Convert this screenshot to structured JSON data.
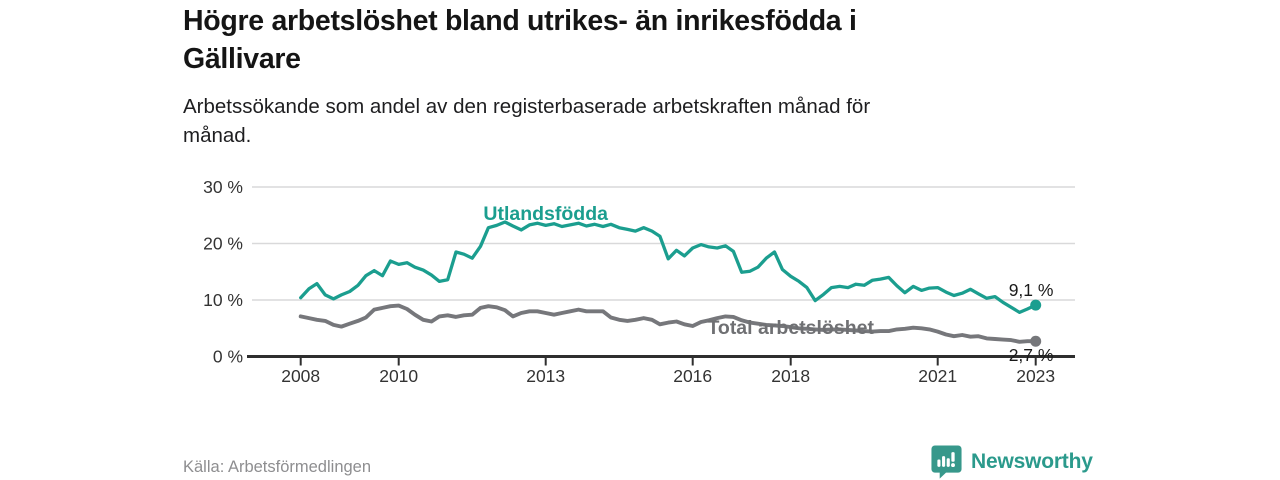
{
  "header": {
    "title_lines": [
      "Högre arbetslöshet bland utrikes- än inrikesfödda i",
      "Gällivare"
    ],
    "subtitle_lines": [
      "Arbetssökande som andel av den registerbaserade arbetskraften månad för",
      "månad."
    ]
  },
  "chart_data": {
    "type": "line",
    "title": "Högre arbetslöshet bland utrikes- än inrikesfödda i Gällivare",
    "subtitle": "Arbetssökande som andel av den registerbaserade arbetskraften månad för månad.",
    "grid": true,
    "legend_position": "inline-labels",
    "x_axis": {
      "ticks": [
        2008,
        2010,
        2013,
        2016,
        2018,
        2021,
        2023
      ],
      "range": [
        2007.0,
        2023.8
      ]
    },
    "y_axis": {
      "tick_values": [
        0,
        10,
        20,
        30
      ],
      "tick_labels": [
        "0 %",
        "10 %",
        "20 %",
        "30 %"
      ],
      "range": [
        0,
        31.5
      ],
      "unit": "%"
    },
    "x": [
      2008.0,
      2008.17,
      2008.33,
      2008.5,
      2008.67,
      2008.83,
      2009.0,
      2009.17,
      2009.33,
      2009.5,
      2009.67,
      2009.83,
      2010.0,
      2010.17,
      2010.33,
      2010.5,
      2010.67,
      2010.83,
      2011.0,
      2011.17,
      2011.33,
      2011.5,
      2011.67,
      2011.83,
      2012.0,
      2012.17,
      2012.33,
      2012.5,
      2012.67,
      2012.83,
      2013.0,
      2013.17,
      2013.33,
      2013.5,
      2013.67,
      2013.83,
      2014.0,
      2014.17,
      2014.33,
      2014.5,
      2014.67,
      2014.83,
      2015.0,
      2015.17,
      2015.33,
      2015.5,
      2015.67,
      2015.83,
      2016.0,
      2016.17,
      2016.33,
      2016.5,
      2016.67,
      2016.83,
      2017.0,
      2017.17,
      2017.33,
      2017.5,
      2017.67,
      2017.83,
      2018.0,
      2018.17,
      2018.33,
      2018.5,
      2018.67,
      2018.83,
      2019.0,
      2019.17,
      2019.33,
      2019.5,
      2019.67,
      2019.83,
      2020.0,
      2020.17,
      2020.33,
      2020.5,
      2020.67,
      2020.83,
      2021.0,
      2021.17,
      2021.33,
      2021.5,
      2021.67,
      2021.83,
      2022.0,
      2022.17,
      2022.33,
      2022.5,
      2022.67,
      2022.83,
      2023.0
    ],
    "series": [
      {
        "name": "Utlandsfödda",
        "color": "#1b9e8f",
        "end_label": "9,1 %",
        "end_value": 9.1,
        "label_pos": {
          "x": 2013.0,
          "y": 24.2
        },
        "values": [
          10.4,
          12.0,
          12.9,
          10.9,
          10.2,
          10.9,
          11.5,
          12.6,
          14.3,
          15.2,
          14.3,
          16.9,
          16.3,
          16.6,
          15.8,
          15.3,
          14.4,
          13.3,
          13.6,
          18.5,
          18.1,
          17.4,
          19.5,
          22.8,
          23.2,
          23.8,
          23.1,
          22.4,
          23.3,
          23.6,
          23.2,
          23.5,
          23.0,
          23.3,
          23.6,
          23.1,
          23.4,
          23.0,
          23.4,
          22.8,
          22.5,
          22.2,
          22.8,
          22.2,
          21.3,
          17.3,
          18.8,
          17.8,
          19.2,
          19.8,
          19.4,
          19.2,
          19.6,
          18.6,
          14.9,
          15.1,
          15.8,
          17.4,
          18.5,
          15.4,
          14.2,
          13.3,
          12.2,
          9.9,
          11.0,
          12.2,
          12.4,
          12.2,
          12.8,
          12.6,
          13.5,
          13.7,
          14.0,
          12.5,
          11.3,
          12.4,
          11.7,
          12.1,
          12.2,
          11.4,
          10.8,
          11.2,
          11.9,
          11.1,
          10.3,
          10.6,
          9.6,
          8.7,
          7.8,
          8.4,
          9.1
        ]
      },
      {
        "name": "Total arbetslöshet",
        "color": "#76777b",
        "end_label": "2,7 %",
        "end_value": 2.7,
        "label_pos": {
          "x": 2218.0,
          "y": 4.0
        },
        "values": [
          7.1,
          6.8,
          6.5,
          6.3,
          5.6,
          5.3,
          5.8,
          6.3,
          6.9,
          8.3,
          8.6,
          8.9,
          9.0,
          8.4,
          7.4,
          6.5,
          6.2,
          7.1,
          7.3,
          7.0,
          7.3,
          7.4,
          8.6,
          8.9,
          8.7,
          8.2,
          7.1,
          7.7,
          8.0,
          8.0,
          7.7,
          7.4,
          7.7,
          8.0,
          8.3,
          8.0,
          8.0,
          8.0,
          6.9,
          6.5,
          6.3,
          6.5,
          6.8,
          6.5,
          5.7,
          6.0,
          6.2,
          5.7,
          5.4,
          6.1,
          6.4,
          6.8,
          7.1,
          7.0,
          6.4,
          6.0,
          5.8,
          5.6,
          5.5,
          5.4,
          5.2,
          5.0,
          4.9,
          4.8,
          4.7,
          4.8,
          4.8,
          4.7,
          4.6,
          4.5,
          4.4,
          4.5,
          4.5,
          4.8,
          4.9,
          5.1,
          5.0,
          4.8,
          4.4,
          3.9,
          3.6,
          3.8,
          3.5,
          3.6,
          3.2,
          3.1,
          3.0,
          2.9,
          2.6,
          2.7,
          2.7
        ]
      }
    ]
  },
  "footer": {
    "source": "Källa: Arbetsförmedlingen",
    "brand": "Newsworthy"
  },
  "colors": {
    "accent_teal": "#1b9e8f",
    "line_gray": "#76777b",
    "grid": "#d9d9da",
    "axis": "#2e2e2e",
    "tick_text": "#333333",
    "title_text": "#151515",
    "source_text": "#8e8e90",
    "brand_teal": "#2b9a8c"
  }
}
